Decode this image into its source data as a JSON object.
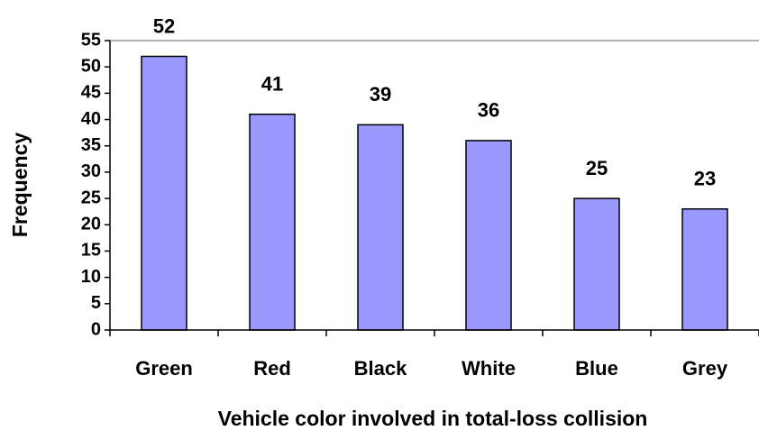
{
  "chart_data": {
    "type": "bar",
    "x_label": "Vehicle color involved in total-loss collision",
    "y_label": "Frequency",
    "categories": [
      "Green",
      "Red",
      "Black",
      "White",
      "Blue",
      "Grey"
    ],
    "values": [
      52,
      41,
      39,
      36,
      25,
      23
    ],
    "color": "#9999ff",
    "ylim": [
      0,
      55
    ],
    "yticks": [
      0,
      5,
      10,
      15,
      20,
      25,
      30,
      35,
      40,
      45,
      50,
      55
    ],
    "grid": false
  }
}
